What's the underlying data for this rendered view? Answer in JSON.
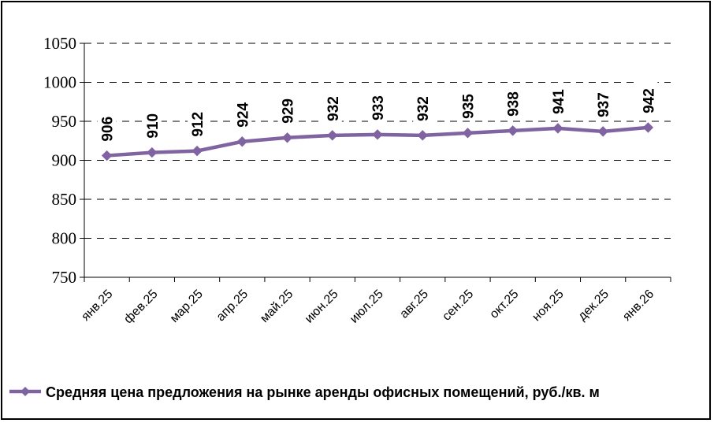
{
  "chart_data": {
    "type": "line",
    "categories": [
      "янв.25",
      "фев.25",
      "мар.25",
      "апр.25",
      "май.25",
      "июн.25",
      "июл.25",
      "авг.25",
      "сен.25",
      "окт.25",
      "ноя.25",
      "дек.25",
      "янв.26"
    ],
    "series": [
      {
        "name": "Средняя цена предложения на рынке аренды офисных помещений,  руб./кв. м",
        "values": [
          906,
          910,
          912,
          924,
          929,
          932,
          933,
          932,
          935,
          938,
          941,
          937,
          942
        ],
        "color": "#8064A2"
      }
    ],
    "ylim": [
      750,
      1050
    ],
    "yticks": [
      750,
      800,
      850,
      900,
      950,
      1000,
      1050
    ],
    "grid": "horizontal-dashed",
    "legend": "bottom",
    "data_labels": true,
    "xlabel": "",
    "ylabel": "",
    "title": ""
  }
}
